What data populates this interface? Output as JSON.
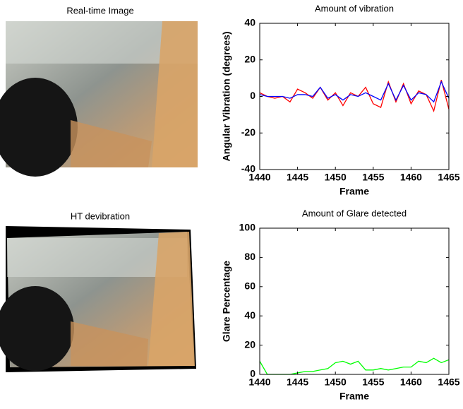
{
  "images": [
    {
      "title": "Real-time Image"
    },
    {
      "title": "HT devibration"
    }
  ],
  "chart_data": [
    {
      "type": "line",
      "title": "Amount of vibration",
      "x_label": "Frame",
      "y_label": "Angular Vibration (degrees)",
      "x": [
        1440,
        1441,
        1442,
        1443,
        1444,
        1445,
        1446,
        1447,
        1448,
        1449,
        1450,
        1451,
        1452,
        1453,
        1454,
        1455,
        1456,
        1457,
        1458,
        1459,
        1460,
        1461,
        1462,
        1463,
        1464,
        1465
      ],
      "series": [
        {
          "color": "#ff0000",
          "values": [
            2,
            0,
            -1,
            0,
            -3,
            4,
            2,
            -1,
            5,
            -2,
            2,
            -5,
            2,
            0,
            5,
            -4,
            -6,
            8,
            -3,
            7,
            -4,
            3,
            1,
            -8,
            9,
            -7
          ]
        },
        {
          "color": "#0000ff",
          "values": [
            1,
            0,
            0,
            0,
            -1,
            1,
            1,
            0,
            5,
            -1,
            1,
            -2,
            1,
            0,
            2,
            0,
            -2,
            7,
            -2,
            6,
            -2,
            2,
            1,
            -3,
            8,
            -1
          ]
        }
      ],
      "xlim": [
        1440,
        1465
      ],
      "xticks": [
        1440,
        1445,
        1450,
        1455,
        1460,
        1465
      ],
      "ylim": [
        -40,
        40
      ],
      "yticks": [
        -40,
        -20,
        0,
        20,
        40
      ]
    },
    {
      "type": "line",
      "title": "Amount of Glare detected",
      "x_label": "Frame",
      "y_label": "Glare Percentage",
      "x": [
        1440,
        1441,
        1442,
        1443,
        1444,
        1445,
        1446,
        1447,
        1448,
        1449,
        1450,
        1451,
        1452,
        1453,
        1454,
        1455,
        1456,
        1457,
        1458,
        1459,
        1460,
        1461,
        1462,
        1463,
        1464,
        1465
      ],
      "series": [
        {
          "color": "#00ff00",
          "values": [
            9,
            0,
            0,
            0,
            0,
            1,
            2,
            2,
            3,
            4,
            8,
            9,
            7,
            9,
            3,
            3,
            4,
            3,
            4,
            5,
            5,
            9,
            8,
            11,
            8,
            10
          ]
        }
      ],
      "xlim": [
        1440,
        1465
      ],
      "xticks": [
        1440,
        1445,
        1450,
        1455,
        1460,
        1465
      ],
      "ylim": [
        0,
        100
      ],
      "yticks": [
        0,
        20,
        40,
        60,
        80,
        100
      ]
    }
  ]
}
